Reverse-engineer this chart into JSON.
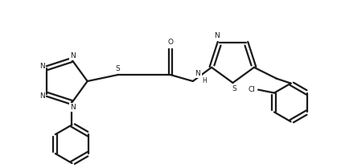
{
  "bg_color": "#ffffff",
  "line_color": "#1a1a1a",
  "line_width": 1.6,
  "figsize": [
    4.24,
    2.09
  ],
  "dpi": 100,
  "xlim": [
    0,
    424
  ],
  "ylim": [
    0,
    209
  ]
}
